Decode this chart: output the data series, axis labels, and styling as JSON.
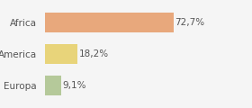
{
  "categories": [
    "Africa",
    "America",
    "Europa"
  ],
  "values": [
    72.7,
    18.2,
    9.1
  ],
  "labels": [
    "72,7%",
    "18,2%",
    "9,1%"
  ],
  "bar_colors": [
    "#e8a87c",
    "#e8d47a",
    "#b5c99a"
  ],
  "xlim": [
    0,
    100
  ],
  "background_color": "#f5f5f5",
  "label_fontsize": 7.5,
  "tick_fontsize": 7.5,
  "bar_height": 0.62
}
